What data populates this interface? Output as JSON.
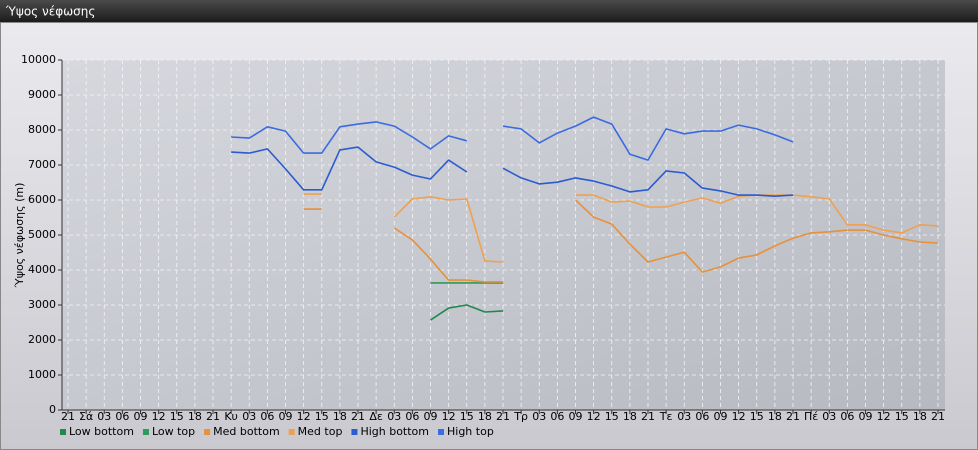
{
  "window": {
    "title": "Ύψος νέφωσης"
  },
  "chart_data": {
    "type": "line",
    "y_label": "Ύψος νέφωσης (m)",
    "categories": [
      "21",
      "Σά",
      "03",
      "06",
      "09",
      "12",
      "15",
      "18",
      "21",
      "Κυ",
      "03",
      "06",
      "09",
      "12",
      "15",
      "18",
      "21",
      "Δε",
      "03",
      "06",
      "09",
      "12",
      "15",
      "18",
      "21",
      "Τρ",
      "03",
      "06",
      "09",
      "12",
      "15",
      "18",
      "21",
      "Τε",
      "03",
      "06",
      "09",
      "12",
      "15",
      "18",
      "21",
      "Πέ",
      "03",
      "06",
      "09",
      "12",
      "15",
      "18",
      "21"
    ],
    "ylim": [
      0,
      10000
    ],
    "yticks": [
      0,
      1000,
      2000,
      3000,
      4000,
      5000,
      6000,
      7000,
      8000,
      9000,
      10000
    ],
    "grid": true,
    "legend": "bottom",
    "series": [
      {
        "name": "Low bottom",
        "color": "#1f8a4c",
        "values": [
          null,
          null,
          null,
          null,
          null,
          null,
          null,
          null,
          null,
          null,
          null,
          null,
          null,
          null,
          null,
          null,
          null,
          null,
          null,
          null,
          2570,
          2910,
          3000,
          2800,
          2830,
          null,
          null,
          null,
          null,
          null,
          null,
          null,
          null,
          null,
          null,
          null,
          null,
          null,
          null,
          null,
          null,
          null,
          null,
          null,
          null,
          null,
          null,
          null,
          null
        ]
      },
      {
        "name": "Low top",
        "color": "#2e9b5a",
        "values": [
          null,
          null,
          null,
          null,
          null,
          null,
          null,
          null,
          null,
          null,
          null,
          null,
          null,
          null,
          null,
          null,
          null,
          null,
          null,
          null,
          3630,
          3630,
          3630,
          3630,
          3630,
          null,
          null,
          null,
          null,
          null,
          null,
          null,
          null,
          null,
          null,
          null,
          null,
          null,
          null,
          null,
          null,
          null,
          null,
          null,
          null,
          null,
          null,
          null,
          null
        ]
      },
      {
        "name": "Med bottom",
        "color": "#e8903a",
        "values": [
          null,
          null,
          null,
          null,
          null,
          null,
          null,
          null,
          null,
          null,
          null,
          null,
          null,
          5740,
          5740,
          null,
          null,
          null,
          5200,
          4860,
          4310,
          3710,
          3710,
          3660,
          3660,
          null,
          null,
          null,
          6000,
          5510,
          5310,
          4740,
          4230,
          4370,
          4510,
          3940,
          4090,
          4340,
          4430,
          4690,
          4910,
          5060,
          5090,
          5140,
          5140,
          5000,
          4890,
          4800,
          4770
        ]
      },
      {
        "name": "Med top",
        "color": "#f0a050",
        "values": [
          null,
          null,
          null,
          null,
          null,
          null,
          null,
          null,
          null,
          null,
          null,
          null,
          null,
          6170,
          6170,
          null,
          null,
          null,
          5510,
          6030,
          6090,
          6000,
          6030,
          4260,
          4230,
          null,
          null,
          null,
          6140,
          6140,
          5940,
          5970,
          5800,
          5800,
          5940,
          6060,
          5910,
          6110,
          6140,
          6140,
          6140,
          6090,
          6030,
          5290,
          5290,
          5140,
          5060,
          5290,
          5260
        ]
      },
      {
        "name": "High bottom",
        "color": "#2a5bd0",
        "values": [
          null,
          null,
          null,
          null,
          null,
          null,
          null,
          null,
          null,
          7370,
          7340,
          7460,
          6890,
          6290,
          6290,
          7430,
          7510,
          7090,
          6940,
          6710,
          6600,
          7140,
          6800,
          null,
          6910,
          6630,
          6460,
          6510,
          6630,
          6540,
          6400,
          6230,
          6290,
          6830,
          6770,
          6340,
          6260,
          6140,
          6140,
          6110,
          6140,
          null,
          null,
          null,
          null,
          null,
          null,
          null,
          null
        ]
      },
      {
        "name": "High top",
        "color": "#3b6be0",
        "values": [
          null,
          null,
          null,
          null,
          null,
          null,
          null,
          null,
          null,
          7800,
          7770,
          8090,
          7970,
          7340,
          7340,
          8090,
          8170,
          8230,
          8110,
          7800,
          7460,
          7830,
          7690,
          null,
          8110,
          8030,
          7630,
          7910,
          8110,
          8370,
          8170,
          7310,
          7140,
          8030,
          7890,
          7970,
          7970,
          8140,
          8030,
          7860,
          7660,
          null,
          null,
          null,
          null,
          null,
          null,
          null,
          null
        ]
      }
    ]
  }
}
